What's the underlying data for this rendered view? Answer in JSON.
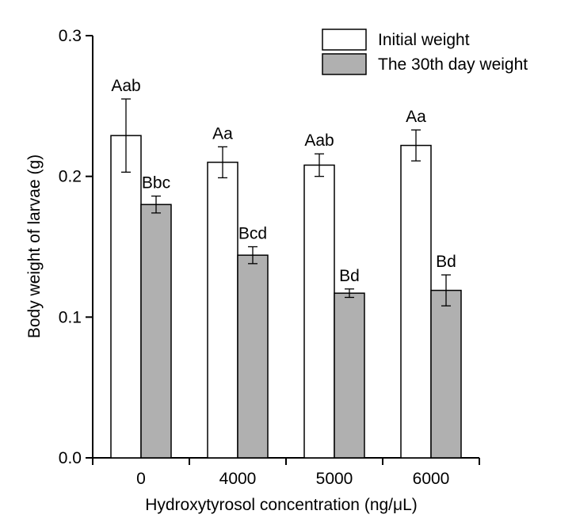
{
  "chart_data": {
    "type": "bar",
    "title": "",
    "xlabel": "Hydroxytyrosol concentration (ng/μL)",
    "ylabel": "Body weight of larvae (g)",
    "ylim": [
      0,
      0.3
    ],
    "yticks": [
      "0.0",
      "0.1",
      "0.2",
      "0.3"
    ],
    "ytick_values": [
      0,
      0.1,
      0.2,
      0.3
    ],
    "categories": [
      "0",
      "4000",
      "5000",
      "6000"
    ],
    "legend_position": "top-right",
    "series": [
      {
        "name": "Initial weight",
        "color": "#ffffff",
        "values": [
          0.229,
          0.21,
          0.208,
          0.222
        ],
        "errors": [
          0.026,
          0.011,
          0.008,
          0.011
        ],
        "labels": [
          "Aab",
          "Aa",
          "Aab",
          "Aa"
        ]
      },
      {
        "name": "The 30th day weight",
        "color": "#b0b0b0",
        "values": [
          0.18,
          0.144,
          0.117,
          0.119
        ],
        "errors": [
          0.006,
          0.006,
          0.003,
          0.011
        ],
        "labels": [
          "Bbc",
          "Bcd",
          "Bd",
          "Bd"
        ]
      }
    ]
  }
}
